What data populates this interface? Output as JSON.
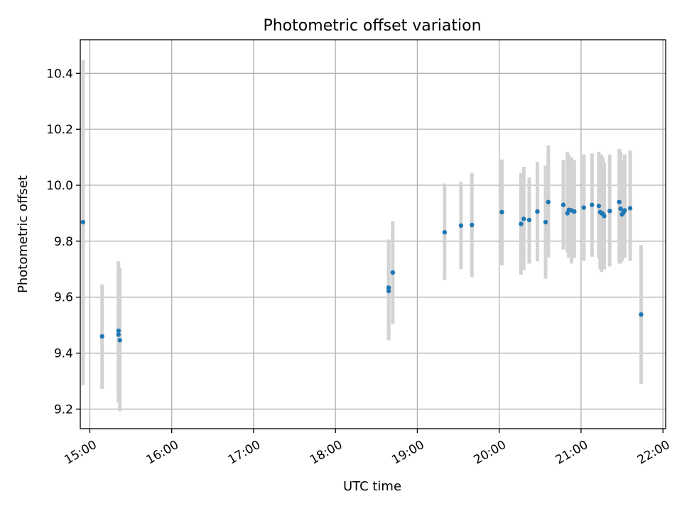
{
  "chart_data": {
    "type": "scatter",
    "title": "Photometric offset variation",
    "xlabel": "UTC time",
    "ylabel": "Photometric offset",
    "x_ticks": [
      "15:00",
      "16:00",
      "17:00",
      "18:00",
      "19:00",
      "20:00",
      "21:00",
      "22:00"
    ],
    "y_ticks": [
      "9.2",
      "9.4",
      "9.6",
      "9.8",
      "10.0",
      "10.2",
      "10.4"
    ],
    "xlim": [
      "14:53",
      "22:02"
    ],
    "ylim": [
      9.13,
      10.52
    ],
    "grid": true,
    "colors": {
      "points": "#1f77b4",
      "errorbars": "#d3d3d3",
      "grid": "#b0b0b0"
    },
    "points": [
      {
        "x": "14:55",
        "y": 9.868,
        "ylo": 9.286,
        "yhi": 10.448
      },
      {
        "x": "15:09",
        "y": 9.46,
        "ylo": 9.272,
        "yhi": 9.646
      },
      {
        "x": "15:21",
        "y": 9.466,
        "ylo": 9.222,
        "yhi": 9.7
      },
      {
        "x": "15:21",
        "y": 9.48,
        "ylo": 9.244,
        "yhi": 9.728
      },
      {
        "x": "15:22",
        "y": 9.446,
        "ylo": 9.192,
        "yhi": 9.704
      },
      {
        "x": "18:39",
        "y": 9.622,
        "ylo": 9.446,
        "yhi": 9.804
      },
      {
        "x": "18:39",
        "y": 9.634,
        "ylo": 9.462,
        "yhi": 9.806
      },
      {
        "x": "18:42",
        "y": 9.688,
        "ylo": 9.504,
        "yhi": 9.872
      },
      {
        "x": "19:20",
        "y": 9.832,
        "ylo": 9.662,
        "yhi": 10.006
      },
      {
        "x": "19:32",
        "y": 9.856,
        "ylo": 9.7,
        "yhi": 10.012
      },
      {
        "x": "19:40",
        "y": 9.858,
        "ylo": 9.672,
        "yhi": 10.044
      },
      {
        "x": "20:02",
        "y": 9.904,
        "ylo": 9.714,
        "yhi": 10.092
      },
      {
        "x": "20:16",
        "y": 9.862,
        "ylo": 9.68,
        "yhi": 10.044
      },
      {
        "x": "20:18",
        "y": 9.88,
        "ylo": 9.696,
        "yhi": 10.066
      },
      {
        "x": "20:22",
        "y": 9.876,
        "ylo": 9.72,
        "yhi": 10.028
      },
      {
        "x": "20:28",
        "y": 9.906,
        "ylo": 9.728,
        "yhi": 10.084
      },
      {
        "x": "20:34",
        "y": 9.868,
        "ylo": 9.666,
        "yhi": 10.07
      },
      {
        "x": "20:36",
        "y": 9.94,
        "ylo": 9.742,
        "yhi": 10.142
      },
      {
        "x": "20:47",
        "y": 9.93,
        "ylo": 9.77,
        "yhi": 10.09
      },
      {
        "x": "20:50",
        "y": 9.9,
        "ylo": 9.76,
        "yhi": 10.12
      },
      {
        "x": "20:51",
        "y": 9.912,
        "ylo": 9.74,
        "yhi": 10.11
      },
      {
        "x": "20:53",
        "y": 9.91,
        "ylo": 9.72,
        "yhi": 10.1
      },
      {
        "x": "20:55",
        "y": 9.906,
        "ylo": 9.74,
        "yhi": 10.09
      },
      {
        "x": "21:02",
        "y": 9.92,
        "ylo": 9.73,
        "yhi": 10.11
      },
      {
        "x": "21:08",
        "y": 9.93,
        "ylo": 9.744,
        "yhi": 10.114
      },
      {
        "x": "21:13",
        "y": 9.926,
        "ylo": 9.74,
        "yhi": 10.12
      },
      {
        "x": "21:14",
        "y": 9.904,
        "ylo": 9.7,
        "yhi": 10.11
      },
      {
        "x": "21:15",
        "y": 9.9,
        "ylo": 9.69,
        "yhi": 10.108
      },
      {
        "x": "21:16",
        "y": 9.898,
        "ylo": 9.7,
        "yhi": 10.1
      },
      {
        "x": "21:17",
        "y": 9.89,
        "ylo": 9.7,
        "yhi": 10.08
      },
      {
        "x": "21:21",
        "y": 9.908,
        "ylo": 9.71,
        "yhi": 10.11
      },
      {
        "x": "21:28",
        "y": 9.94,
        "ylo": 9.72,
        "yhi": 10.13
      },
      {
        "x": "21:29",
        "y": 9.916,
        "ylo": 9.72,
        "yhi": 10.12
      },
      {
        "x": "21:30",
        "y": 9.896,
        "ylo": 9.73,
        "yhi": 10.09
      },
      {
        "x": "21:31",
        "y": 9.902,
        "ylo": 9.74,
        "yhi": 10.08
      },
      {
        "x": "21:32",
        "y": 9.91,
        "ylo": 9.74,
        "yhi": 10.11
      },
      {
        "x": "21:36",
        "y": 9.918,
        "ylo": 9.73,
        "yhi": 10.124
      },
      {
        "x": "21:44",
        "y": 9.538,
        "ylo": 9.29,
        "yhi": 9.786
      }
    ]
  }
}
